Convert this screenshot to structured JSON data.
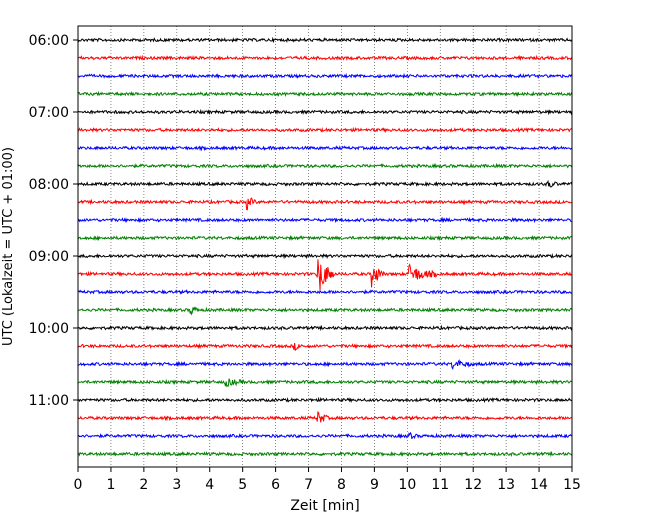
{
  "chart_data": {
    "type": "line",
    "xlabel": "Zeit  [min]",
    "ylabel": "UTC (Lokalzeit = UTC + 01:00)",
    "xlim": [
      0,
      15
    ],
    "x_ticks": [
      0,
      1,
      2,
      3,
      4,
      5,
      6,
      7,
      8,
      9,
      10,
      11,
      12,
      13,
      14,
      15
    ],
    "y_tick_labels": [
      "06:00",
      "07:00",
      "08:00",
      "09:00",
      "10:00",
      "11:00"
    ],
    "grid": "vertical-dotted",
    "row_colors": [
      "#000000",
      "#ff0000",
      "#0000ff",
      "#008000"
    ],
    "rows": [
      {
        "start": "06:00",
        "color": "#000000"
      },
      {
        "start": "06:15",
        "color": "#ff0000"
      },
      {
        "start": "06:30",
        "color": "#0000ff"
      },
      {
        "start": "06:45",
        "color": "#008000"
      },
      {
        "start": "07:00",
        "color": "#000000"
      },
      {
        "start": "07:15",
        "color": "#ff0000"
      },
      {
        "start": "07:30",
        "color": "#0000ff"
      },
      {
        "start": "07:45",
        "color": "#008000"
      },
      {
        "start": "08:00",
        "color": "#000000",
        "events": [
          {
            "t": 14.3,
            "amp": 0.25
          }
        ]
      },
      {
        "start": "08:15",
        "color": "#ff0000",
        "events": [
          {
            "t": 5.15,
            "amp": 0.45
          }
        ]
      },
      {
        "start": "08:30",
        "color": "#0000ff"
      },
      {
        "start": "08:45",
        "color": "#008000"
      },
      {
        "start": "09:00",
        "color": "#000000"
      },
      {
        "start": "09:15",
        "color": "#ff0000",
        "events": [
          {
            "t": 7.3,
            "amp": 1.4,
            "dur": 0.5
          },
          {
            "t": 8.95,
            "amp": 0.9,
            "dur": 0.35
          },
          {
            "t": 10.1,
            "amp": 0.6,
            "dur": 0.8
          }
        ]
      },
      {
        "start": "09:30",
        "color": "#0000ff"
      },
      {
        "start": "09:45",
        "color": "#008000",
        "events": [
          {
            "t": 3.45,
            "amp": 0.25
          }
        ]
      },
      {
        "start": "10:00",
        "color": "#000000"
      },
      {
        "start": "10:15",
        "color": "#ff0000",
        "events": [
          {
            "t": 6.6,
            "amp": 0.2
          }
        ]
      },
      {
        "start": "10:30",
        "color": "#0000ff",
        "events": [
          {
            "t": 11.4,
            "amp": 0.3,
            "dur": 0.6
          }
        ]
      },
      {
        "start": "10:45",
        "color": "#008000",
        "events": [
          {
            "t": 4.5,
            "amp": 0.25,
            "dur": 0.6
          }
        ]
      },
      {
        "start": "11:00",
        "color": "#000000"
      },
      {
        "start": "11:15",
        "color": "#ff0000",
        "events": [
          {
            "t": 7.3,
            "amp": 0.45,
            "dur": 0.3
          }
        ]
      },
      {
        "start": "11:30",
        "color": "#0000ff",
        "events": [
          {
            "t": 10.05,
            "amp": 0.2
          }
        ]
      },
      {
        "start": "11:45",
        "color": "#008000"
      }
    ]
  }
}
